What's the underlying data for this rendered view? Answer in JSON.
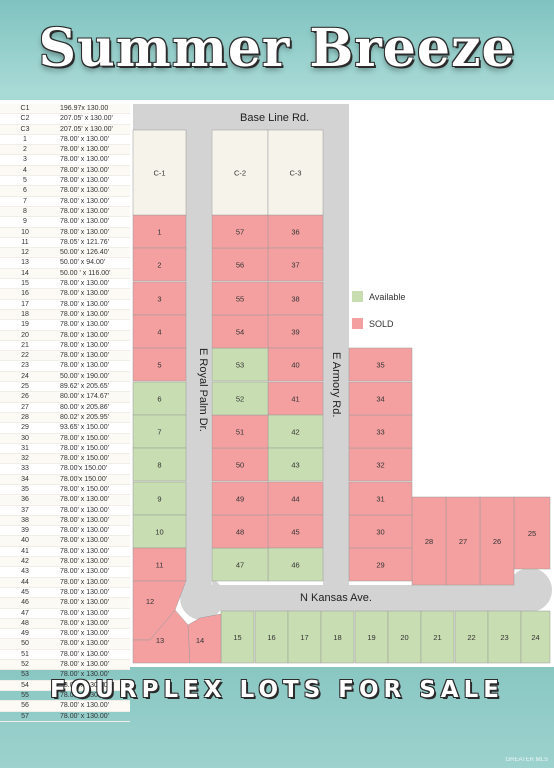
{
  "title": "Summer Breeze",
  "footer": "FOURPLEX LOTS FOR SALE",
  "watermark": "GREATER MLS",
  "colors": {
    "available": "#c8ddb1",
    "sold": "#f4a0a0",
    "commercial": "#f6f3ea",
    "road": "#d3d3d3"
  },
  "legend": {
    "available": "Available",
    "sold": "SOLD"
  },
  "roads": {
    "base_line": "Base Line Rd.",
    "royal_palm": "E Royal Palm Dr.",
    "armory": "E Armory Rd.",
    "kansas": "N Kansas Ave."
  },
  "lot_table": [
    {
      "lot": "C1",
      "dim": "196.97x 130.00"
    },
    {
      "lot": "C2",
      "dim": "207.05' x 130.00'"
    },
    {
      "lot": "C3",
      "dim": "207.05' x 130.00'"
    },
    {
      "lot": "1",
      "dim": "78.00' x 130.00'"
    },
    {
      "lot": "2",
      "dim": "78.00' x 130.00'"
    },
    {
      "lot": "3",
      "dim": "78.00' x 130.00'"
    },
    {
      "lot": "4",
      "dim": "78.00' x 130.00'"
    },
    {
      "lot": "5",
      "dim": "78.00' x 130.00'"
    },
    {
      "lot": "6",
      "dim": "78.00' x 130.00'"
    },
    {
      "lot": "7",
      "dim": "78.00' x 130.00'"
    },
    {
      "lot": "8",
      "dim": "78.00' x 130.00'"
    },
    {
      "lot": "9",
      "dim": "78.00' x 130.00'"
    },
    {
      "lot": "10",
      "dim": "78.00' x 130.00'"
    },
    {
      "lot": "11",
      "dim": "78.05' x 121.76'"
    },
    {
      "lot": "12",
      "dim": "50.00' x 126.40'"
    },
    {
      "lot": "13",
      "dim": "50.00' x 94.00'"
    },
    {
      "lot": "14",
      "dim": "50.00 ' x 116.00'"
    },
    {
      "lot": "15",
      "dim": "78.00' x 130.00'"
    },
    {
      "lot": "16",
      "dim": "78.00' x 130.00'"
    },
    {
      "lot": "17",
      "dim": "78.00' x 130.00'"
    },
    {
      "lot": "18",
      "dim": "78.00' x 130.00'"
    },
    {
      "lot": "19",
      "dim": "78.00' x 130.00'"
    },
    {
      "lot": "20",
      "dim": "78.00' x 130.00'"
    },
    {
      "lot": "21",
      "dim": "78.00' x 130.00'"
    },
    {
      "lot": "22",
      "dim": "78.00' x 130.00'"
    },
    {
      "lot": "23",
      "dim": "78.00' x 130.00'"
    },
    {
      "lot": "24",
      "dim": "50.00' x 190.00'"
    },
    {
      "lot": "25",
      "dim": "89.62' x 205.65'"
    },
    {
      "lot": "26",
      "dim": "80.00' x 174.67'"
    },
    {
      "lot": "27",
      "dim": "80.00' x 205.86'"
    },
    {
      "lot": "28",
      "dim": "80.02' x 205.95'"
    },
    {
      "lot": "29",
      "dim": "93.65' x 150.00'"
    },
    {
      "lot": "30",
      "dim": "78.00' x 150.00'"
    },
    {
      "lot": "31",
      "dim": "78.00' x 150.00'"
    },
    {
      "lot": "32",
      "dim": "78.00' x 150.00'"
    },
    {
      "lot": "33",
      "dim": "78.00'x 150.00'"
    },
    {
      "lot": "34",
      "dim": "78.00'x 150.00'"
    },
    {
      "lot": "35",
      "dim": "78.00' x 150.00'"
    },
    {
      "lot": "36",
      "dim": "78.00' x 130.00'"
    },
    {
      "lot": "37",
      "dim": "78.00' x 130.00'"
    },
    {
      "lot": "38",
      "dim": "78.00' x 130.00'"
    },
    {
      "lot": "39",
      "dim": "78.00' x 130.00'"
    },
    {
      "lot": "40",
      "dim": "78.00' x 130.00'"
    },
    {
      "lot": "41",
      "dim": "78.00' x 130.00'"
    },
    {
      "lot": "42",
      "dim": "78.00' x 130.00'"
    },
    {
      "lot": "43",
      "dim": "78.00' x 130.00'"
    },
    {
      "lot": "44",
      "dim": "78.00' x 130.00'"
    },
    {
      "lot": "45",
      "dim": "78.00' x 130.00'"
    },
    {
      "lot": "46",
      "dim": "78.00' x 130.00'"
    },
    {
      "lot": "47",
      "dim": "78.00' x 130.00'"
    },
    {
      "lot": "48",
      "dim": "78.00' x 130.00'"
    },
    {
      "lot": "49",
      "dim": "78.00' x 130.00'"
    },
    {
      "lot": "50",
      "dim": "78.00' x 130.00'"
    },
    {
      "lot": "51",
      "dim": "78.00' x 130.00'"
    },
    {
      "lot": "52",
      "dim": "78.00' x 130.00'"
    },
    {
      "lot": "53",
      "dim": "78.00' x 130.00'"
    },
    {
      "lot": "54",
      "dim": "78.00' x 130.00'"
    },
    {
      "lot": "55",
      "dim": "78.00' x 130.00'"
    },
    {
      "lot": "56",
      "dim": "78.00' x 130.00'"
    },
    {
      "lot": "57",
      "dim": "78.00' x 130.00'"
    }
  ],
  "lots": [
    {
      "id": "C-1",
      "status": "commercial"
    },
    {
      "id": "C-2",
      "status": "commercial"
    },
    {
      "id": "C-3",
      "status": "commercial"
    },
    {
      "id": "1",
      "status": "sold"
    },
    {
      "id": "2",
      "status": "sold"
    },
    {
      "id": "3",
      "status": "sold"
    },
    {
      "id": "4",
      "status": "sold"
    },
    {
      "id": "5",
      "status": "sold"
    },
    {
      "id": "6",
      "status": "available"
    },
    {
      "id": "7",
      "status": "available"
    },
    {
      "id": "8",
      "status": "available"
    },
    {
      "id": "9",
      "status": "available"
    },
    {
      "id": "10",
      "status": "available"
    },
    {
      "id": "11",
      "status": "sold"
    },
    {
      "id": "12",
      "status": "sold"
    },
    {
      "id": "13",
      "status": "sold"
    },
    {
      "id": "14",
      "status": "sold"
    },
    {
      "id": "15",
      "status": "available"
    },
    {
      "id": "16",
      "status": "available"
    },
    {
      "id": "17",
      "status": "available"
    },
    {
      "id": "18",
      "status": "available"
    },
    {
      "id": "19",
      "status": "available"
    },
    {
      "id": "20",
      "status": "available"
    },
    {
      "id": "21",
      "status": "available"
    },
    {
      "id": "22",
      "status": "available"
    },
    {
      "id": "23",
      "status": "available"
    },
    {
      "id": "24",
      "status": "available"
    },
    {
      "id": "25",
      "status": "sold"
    },
    {
      "id": "26",
      "status": "sold"
    },
    {
      "id": "27",
      "status": "sold"
    },
    {
      "id": "28",
      "status": "sold"
    },
    {
      "id": "29",
      "status": "sold"
    },
    {
      "id": "30",
      "status": "sold"
    },
    {
      "id": "31",
      "status": "sold"
    },
    {
      "id": "32",
      "status": "sold"
    },
    {
      "id": "33",
      "status": "sold"
    },
    {
      "id": "34",
      "status": "sold"
    },
    {
      "id": "35",
      "status": "sold"
    },
    {
      "id": "36",
      "status": "sold"
    },
    {
      "id": "37",
      "status": "sold"
    },
    {
      "id": "38",
      "status": "sold"
    },
    {
      "id": "39",
      "status": "sold"
    },
    {
      "id": "40",
      "status": "sold"
    },
    {
      "id": "41",
      "status": "sold"
    },
    {
      "id": "42",
      "status": "available"
    },
    {
      "id": "43",
      "status": "available"
    },
    {
      "id": "44",
      "status": "sold"
    },
    {
      "id": "45",
      "status": "sold"
    },
    {
      "id": "46",
      "status": "available"
    },
    {
      "id": "47",
      "status": "available"
    },
    {
      "id": "48",
      "status": "sold"
    },
    {
      "id": "49",
      "status": "sold"
    },
    {
      "id": "50",
      "status": "sold"
    },
    {
      "id": "51",
      "status": "sold"
    },
    {
      "id": "52",
      "status": "available"
    },
    {
      "id": "53",
      "status": "available"
    },
    {
      "id": "54",
      "status": "sold"
    },
    {
      "id": "55",
      "status": "sold"
    },
    {
      "id": "56",
      "status": "sold"
    },
    {
      "id": "57",
      "status": "sold"
    }
  ]
}
